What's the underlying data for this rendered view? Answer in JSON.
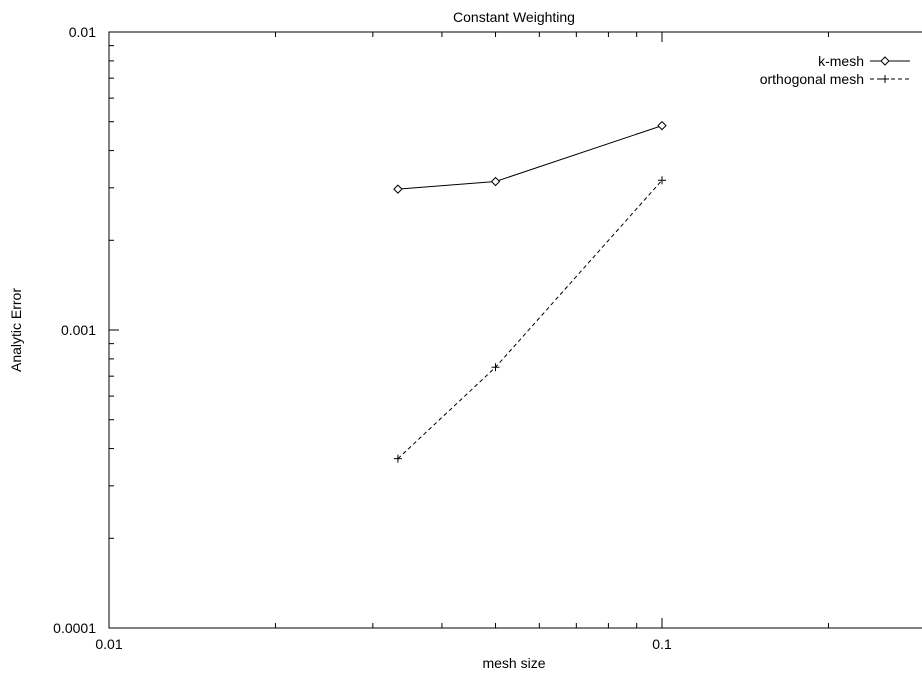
{
  "chart_data": {
    "type": "line",
    "title": "Constant Weighting",
    "xlabel": "mesh size",
    "ylabel": "Analytic Error",
    "xscale": "log",
    "yscale": "log",
    "xlim": [
      0.01,
      0.3
    ],
    "ylim": [
      0.0001,
      0.01
    ],
    "x_tick_labels": [
      {
        "value": 0.01,
        "label": "0.01"
      },
      {
        "value": 0.1,
        "label": "0.1"
      }
    ],
    "y_tick_labels": [
      {
        "value": 0.01,
        "label": "0.01"
      },
      {
        "value": 0.001,
        "label": "0.001"
      },
      {
        "value": 0.0001,
        "label": "0.0001"
      }
    ],
    "grid": false,
    "legend_position": "top-right",
    "series": [
      {
        "name": "k-mesh",
        "marker": "diamond",
        "line_style": "solid",
        "x": [
          0.0333,
          0.05,
          0.1
        ],
        "y": [
          0.00297,
          0.00315,
          0.00485
        ]
      },
      {
        "name": "orthogonal mesh",
        "marker": "plus",
        "line_style": "dashed",
        "x": [
          0.0333,
          0.05,
          0.1
        ],
        "y": [
          0.00037,
          0.00075,
          0.00318
        ]
      }
    ]
  }
}
